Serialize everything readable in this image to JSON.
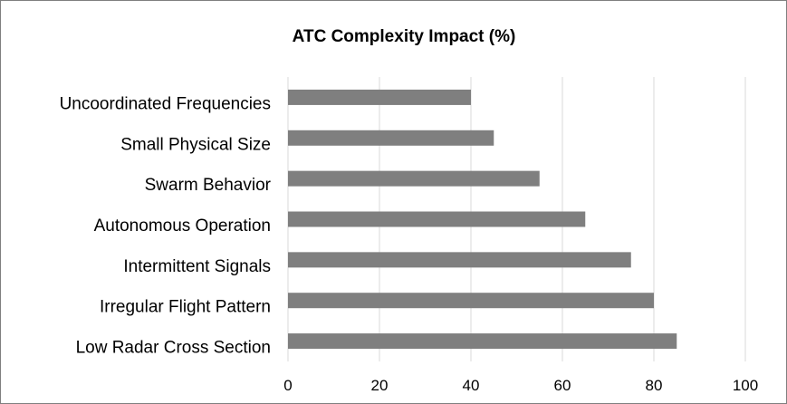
{
  "chart_data": {
    "type": "bar",
    "orientation": "horizontal",
    "title": "ATC Complexity Impact (%)",
    "xlabel": "",
    "ylabel": "",
    "categories": [
      "Uncoordinated Frequencies",
      "Small Physical Size",
      "Swarm Behavior",
      "Autonomous Operation",
      "Intermittent Signals",
      "Irregular Flight Pattern",
      "Low Radar Cross Section"
    ],
    "values": [
      40,
      45,
      55,
      65,
      75,
      80,
      85
    ],
    "xlim": [
      0,
      100
    ],
    "xticks": [
      "0",
      "20",
      "40",
      "60",
      "80",
      "100"
    ],
    "grid": "vertical",
    "legend": "none",
    "colors": {
      "bar": "#7f7f7f",
      "grid": "#d9d9d9",
      "frame": "#7f7f7f"
    }
  }
}
